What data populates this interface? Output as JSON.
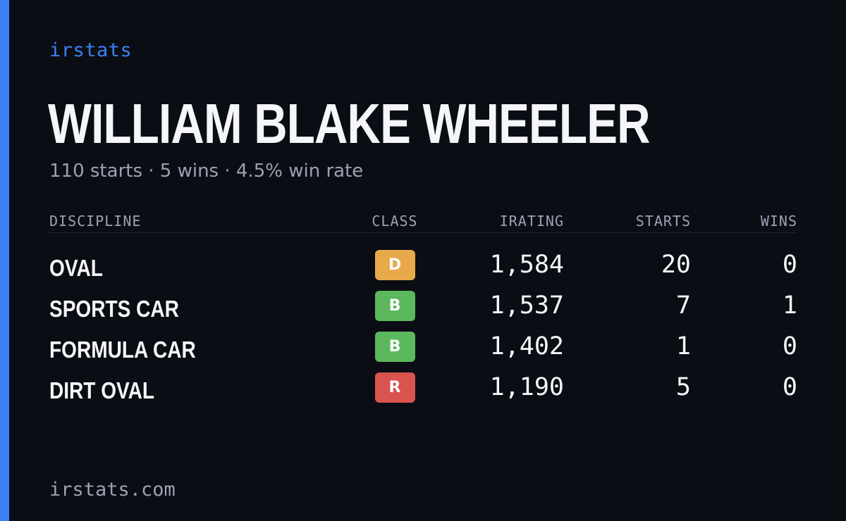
{
  "colors": {
    "background": "#0b0d14",
    "accent": "#3b82f6",
    "text_primary": "#f5f6fa",
    "text_muted": "#9aa2b4"
  },
  "brand": "irstats",
  "driver": {
    "name": "WILLIAM BLAKE WHEELER",
    "summary": "110 starts · 5 wins · 4.5% win rate"
  },
  "table": {
    "headers": {
      "discipline": "DISCIPLINE",
      "class": "CLASS",
      "irating": "IRATING",
      "starts": "STARTS",
      "wins": "WINS"
    },
    "rows": [
      {
        "discipline": "OVAL",
        "class": "D",
        "class_color": "#e8a94a",
        "irating": "1,584",
        "starts": "20",
        "wins": "0"
      },
      {
        "discipline": "SPORTS CAR",
        "class": "B",
        "class_color": "#5cb85c",
        "irating": "1,537",
        "starts": "7",
        "wins": "1"
      },
      {
        "discipline": "FORMULA CAR",
        "class": "B",
        "class_color": "#5cb85c",
        "irating": "1,402",
        "starts": "1",
        "wins": "0"
      },
      {
        "discipline": "DIRT OVAL",
        "class": "R",
        "class_color": "#d9534f",
        "irating": "1,190",
        "starts": "5",
        "wins": "0"
      }
    ]
  },
  "footer": "irstats.com"
}
